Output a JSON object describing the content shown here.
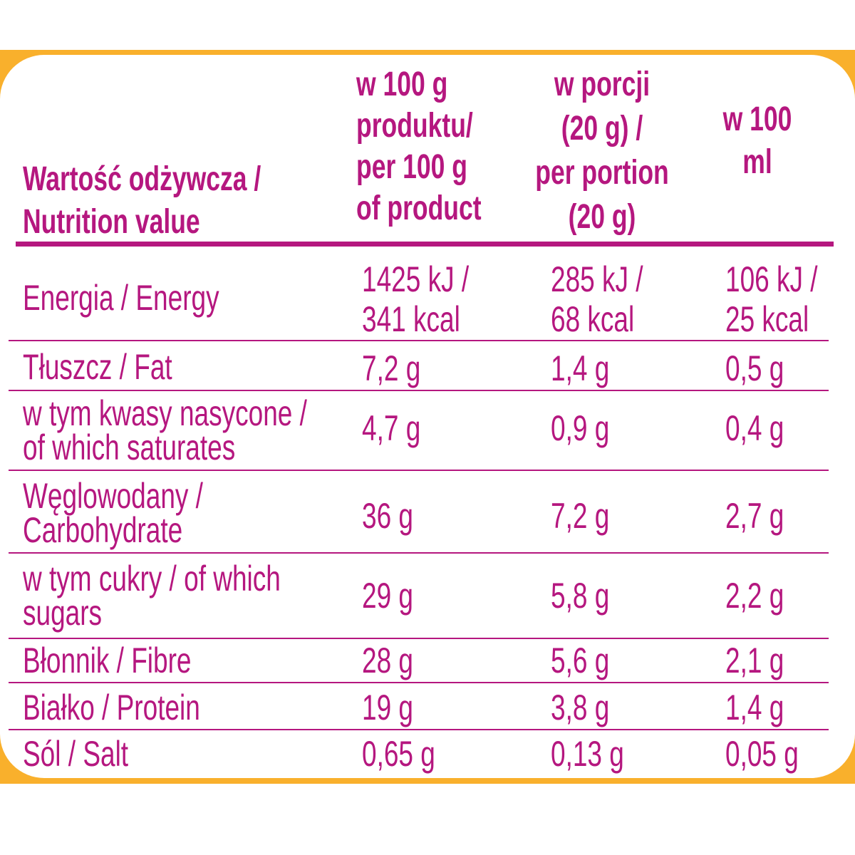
{
  "header": {
    "col1": "Wartość odżywcza /\nNutrition value",
    "col2": "w 100 g\nproduktu/\nper 100 g\nof product",
    "col3": "w porcji\n(20 g) /\nper portion\n(20 g)",
    "col4": "w 100 ml"
  },
  "rows": [
    {
      "label": "Energia / Energy",
      "per100g": "1425 kJ /\n341 kcal",
      "portion": "285 kJ /\n68 kcal",
      "per100ml": "106 kJ /\n25 kcal"
    },
    {
      "label": "Tłuszcz / Fat",
      "per100g": "7,2 g",
      "portion": "1,4 g",
      "per100ml": "0,5 g"
    },
    {
      "label": "w tym kwasy nasycone /\nof which saturates",
      "per100g": "4,7 g",
      "portion": "0,9 g",
      "per100ml": "0,4 g"
    },
    {
      "label": "Węglowodany /\nCarbohydrate",
      "per100g": "36 g",
      "portion": "7,2 g",
      "per100ml": "2,7 g"
    },
    {
      "label": "w tym cukry / of which\nsugars",
      "per100g": "29 g",
      "portion": "5,8 g",
      "per100ml": "2,2 g"
    },
    {
      "label": "Błonnik / Fibre",
      "per100g": "28 g",
      "portion": "5,6 g",
      "per100ml": "2,1 g"
    },
    {
      "label": "Białko / Protein",
      "per100g": "19 g",
      "portion": "3,8 g",
      "per100ml": "1,4 g"
    },
    {
      "label": "Sól / Salt",
      "per100g": "0,65 g",
      "portion": "0,13 g",
      "per100ml": "0,05 g"
    }
  ],
  "colors": {
    "text": "#b5177f",
    "frame": "#f9b02c"
  }
}
